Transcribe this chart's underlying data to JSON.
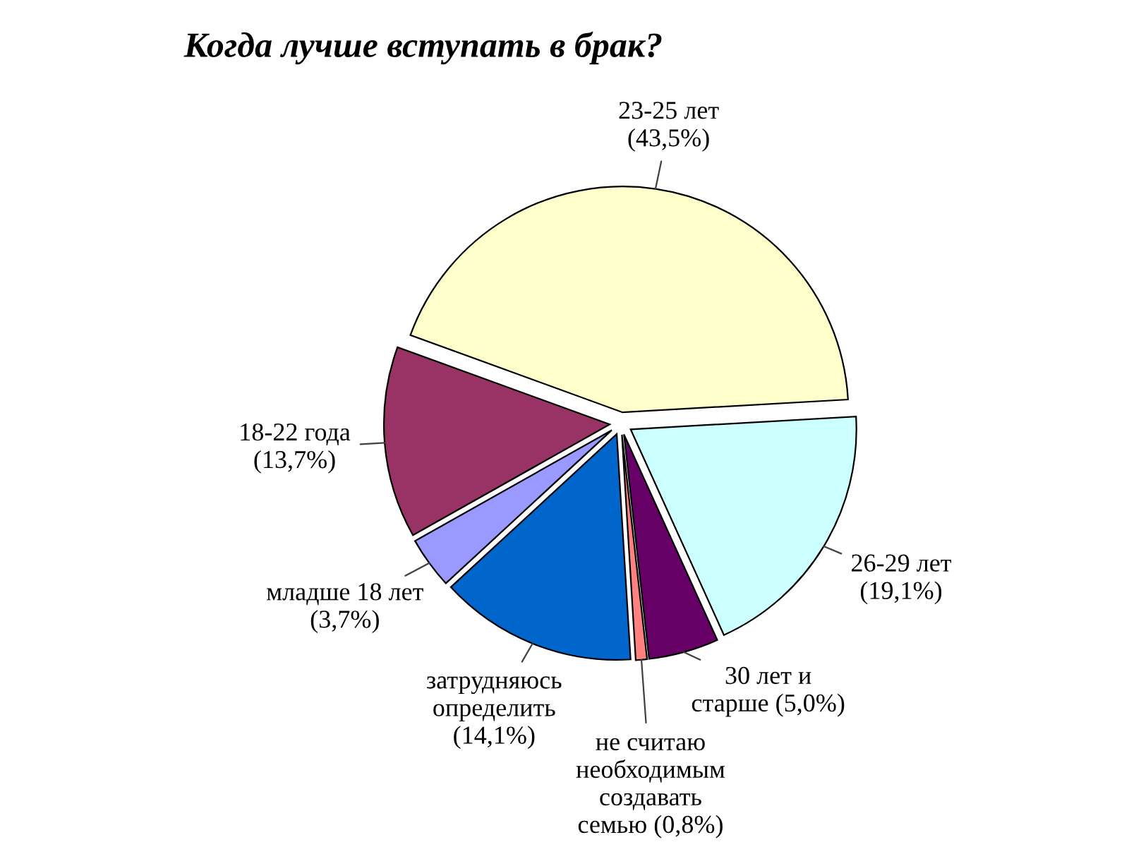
{
  "chart_data": {
    "type": "pie",
    "title": "Когда лучше вступать в брак?",
    "categories": [
      "23-25 лет",
      "26-29 лет",
      "30 лет и\nстарше",
      "не считаю\nнеобходимым\nсоздавать\nсемью",
      "затрудняюсь\nопределить",
      "младше 18 лет",
      "18-22 года"
    ],
    "values": [
      43.5,
      19.1,
      5.0,
      0.8,
      14.1,
      3.7,
      13.7
    ],
    "value_labels": [
      "(43,5%)",
      "(19,1%)",
      "(5,0%)",
      "(0,8%)",
      "(14,1%)",
      "(3,7%)",
      "(13,7%)"
    ],
    "colors": [
      "#ffffcc",
      "#ccffff",
      "#660066",
      "#ff8080",
      "#0066cc",
      "#9999ff",
      "#993366"
    ]
  }
}
